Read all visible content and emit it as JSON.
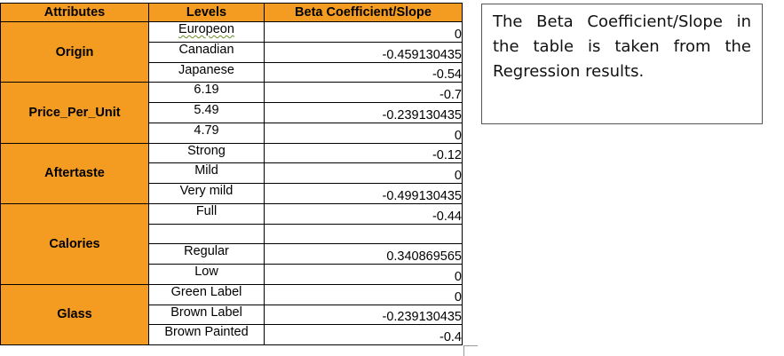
{
  "table": {
    "headers": [
      "Attributes",
      "Levels",
      "Beta Coefficient/Slope"
    ],
    "groups": [
      {
        "attribute": "Origin",
        "rows": [
          {
            "level": "Europeon",
            "beta": "0"
          },
          {
            "level": "Canadian",
            "beta": "-0.459130435"
          },
          {
            "level": "Japanese",
            "beta": "-0.54"
          }
        ]
      },
      {
        "attribute": "Price_Per_Unit",
        "rows": [
          {
            "level": "6.19",
            "beta": "-0.7"
          },
          {
            "level": "5.49",
            "beta": "-0.239130435"
          },
          {
            "level": "4.79",
            "beta": "0"
          }
        ]
      },
      {
        "attribute": "Aftertaste",
        "rows": [
          {
            "level": "Strong",
            "beta": "-0.12"
          },
          {
            "level": "Mild",
            "beta": "0"
          },
          {
            "level": "Very mild",
            "beta": "-0.499130435"
          }
        ]
      },
      {
        "attribute": "Calories",
        "rows": [
          {
            "level": "Full",
            "beta": "-0.44"
          },
          {
            "level": "",
            "beta": ""
          },
          {
            "level": "Regular",
            "beta": "0.340869565"
          },
          {
            "level": "Low",
            "beta": "0"
          }
        ]
      },
      {
        "attribute": "Glass",
        "rows": [
          {
            "level": "Green Label",
            "beta": "0"
          },
          {
            "level": "Brown Label",
            "beta": "-0.239130435"
          },
          {
            "level": "Brown Painted",
            "beta": "-0.4"
          }
        ]
      }
    ]
  },
  "note": {
    "text": "The Beta Coefficient/Slope in the table is taken from the Regression results."
  }
}
